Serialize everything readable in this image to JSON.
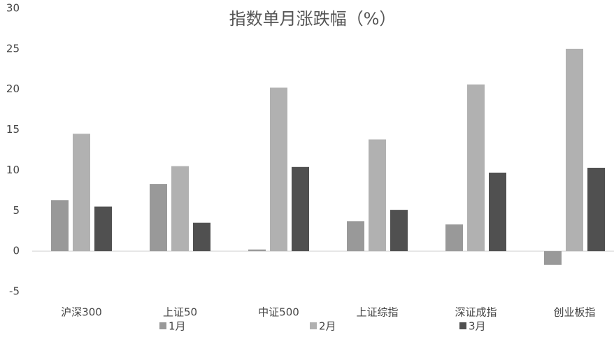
{
  "chart_data": {
    "type": "bar",
    "title": "指数单月涨跌幅（%）",
    "categories": [
      "沪深300",
      "上证50",
      "中证500",
      "上证综指",
      "深证成指",
      "创业板指"
    ],
    "series": [
      {
        "name": "1月",
        "color": "#999999",
        "values": [
          6.3,
          8.3,
          0.2,
          3.7,
          3.3,
          -1.7
        ]
      },
      {
        "name": "2月",
        "color": "#b1b1b1",
        "values": [
          14.5,
          10.5,
          20.2,
          13.8,
          20.6,
          25
        ]
      },
      {
        "name": "3月",
        "color": "#505050",
        "values": [
          5.5,
          3.5,
          10.4,
          5.1,
          9.7,
          10.3
        ]
      }
    ],
    "ylim": [
      -5,
      30
    ],
    "yticks": [
      -5,
      0,
      5,
      10,
      15,
      20,
      25,
      30
    ],
    "grid": false,
    "legend": "bottom"
  }
}
